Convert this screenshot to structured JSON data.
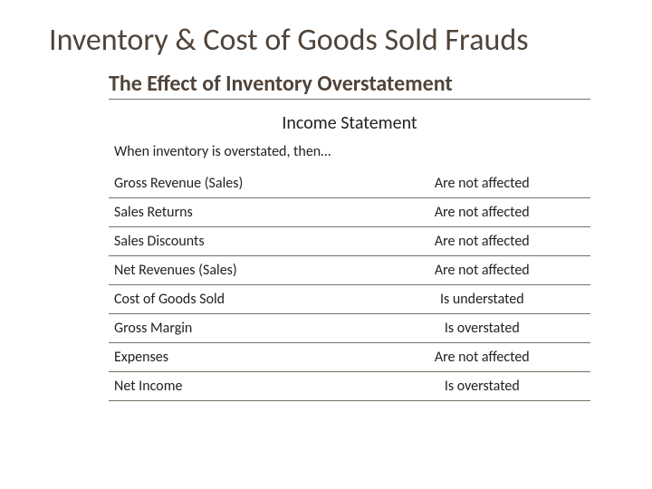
{
  "colors": {
    "title_color": "#50443a",
    "text_color": "#222222",
    "rule_color": "#7a6f63",
    "background": "#ffffff"
  },
  "typography": {
    "title_font": "Gill Sans MT",
    "title_size_pt": 26,
    "subtitle_size_pt": 18,
    "body_size_pt": 12
  },
  "title": "Inventory & Cost of Goods Sold Frauds",
  "subtitle": "The Effect of Inventory Overstatement",
  "table_title": "Income Statement",
  "intro": "When inventory is overstated, then…",
  "effects_table": {
    "type": "table",
    "columns": [
      "item",
      "effect"
    ],
    "column_widths_pct": [
      55,
      45
    ],
    "column_align": [
      "left",
      "center"
    ],
    "rows": [
      {
        "item": "Gross Revenue (Sales)",
        "effect": "Are not affected"
      },
      {
        "item": "Sales Returns",
        "effect": "Are not affected"
      },
      {
        "item": "Sales Discounts",
        "effect": "Are not affected"
      },
      {
        "item": "Net Revenues (Sales)",
        "effect": "Are not affected"
      },
      {
        "item": "Cost of Goods Sold",
        "effect": "Is understated"
      },
      {
        "item": "Gross Margin",
        "effect": "Is overstated"
      },
      {
        "item": "Expenses",
        "effect": "Are not affected"
      },
      {
        "item": "Net Income",
        "effect": "Is overstated"
      }
    ]
  }
}
